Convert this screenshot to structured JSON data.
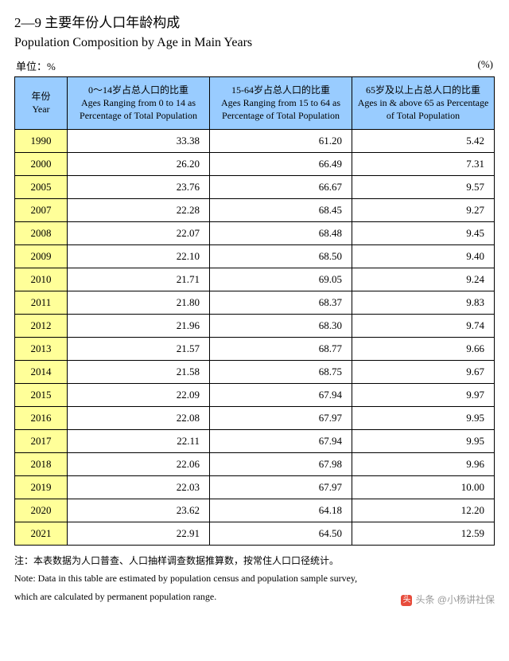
{
  "title_cn": "2—9  主要年份人口年龄构成",
  "title_en": "Population Composition by Age in Main Years",
  "unit_left": "单位：%",
  "unit_right": "(%)",
  "table": {
    "type": "table",
    "header_bg": "#99ccff",
    "year_bg": "#ffff99",
    "border_color": "#000000",
    "columns": [
      {
        "cn": "年份",
        "en": "Year"
      },
      {
        "cn": "0～14岁占总人口的比重",
        "en": "Ages Ranging from 0 to 14 as Percentage of Total Population"
      },
      {
        "cn": "15-64岁占总人口的比重",
        "en": "Ages Ranging from 15 to 64 as Percentage of Total Population"
      },
      {
        "cn": "65岁及以上占总人口的比重",
        "en": "Ages in & above 65 as Percentage of Total Population"
      }
    ],
    "rows": [
      [
        "1990",
        "33.38",
        "61.20",
        "5.42"
      ],
      [
        "2000",
        "26.20",
        "66.49",
        "7.31"
      ],
      [
        "2005",
        "23.76",
        "66.67",
        "9.57"
      ],
      [
        "2007",
        "22.28",
        "68.45",
        "9.27"
      ],
      [
        "2008",
        "22.07",
        "68.48",
        "9.45"
      ],
      [
        "2009",
        "22.10",
        "68.50",
        "9.40"
      ],
      [
        "2010",
        "21.71",
        "69.05",
        "9.24"
      ],
      [
        "2011",
        "21.80",
        "68.37",
        "9.83"
      ],
      [
        "2012",
        "21.96",
        "68.30",
        "9.74"
      ],
      [
        "2013",
        "21.57",
        "68.77",
        "9.66"
      ],
      [
        "2014",
        "21.58",
        "68.75",
        "9.67"
      ],
      [
        "2015",
        "22.09",
        "67.94",
        "9.97"
      ],
      [
        "2016",
        "22.08",
        "67.97",
        "9.95"
      ],
      [
        "2017",
        "22.11",
        "67.94",
        "9.95"
      ],
      [
        "2018",
        "22.06",
        "67.98",
        "9.96"
      ],
      [
        "2019",
        "22.03",
        "67.97",
        "10.00"
      ],
      [
        "2020",
        "23.62",
        "64.18",
        "12.20"
      ],
      [
        "2021",
        "22.91",
        "64.50",
        "12.59"
      ]
    ]
  },
  "note_cn": "注：本表数据为人口普查、人口抽样调查数据推算数，按常住人口口径统计。",
  "note_en1": "Note:  Data in this table are estimated by population census and population sample survey,",
  "note_en2": "which are calculated by permanent population range.",
  "watermark": "头条 @小杨讲社保",
  "watermark_icon": "头"
}
